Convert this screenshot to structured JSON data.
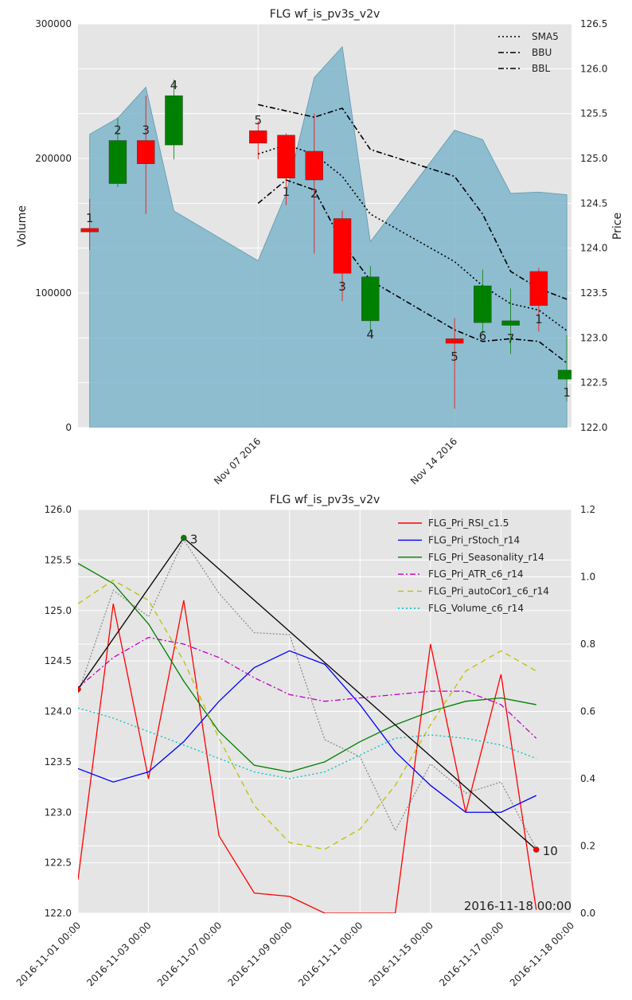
{
  "colors": {
    "plot_bg": "#e5e5e5",
    "grid": "#ffffff",
    "volume_fill": "#7fb6cc",
    "up": "#008000",
    "down": "#ff0000",
    "black": "#000000",
    "gray": "#888888",
    "rsi": "#ff0000",
    "rstoch": "#0000ff",
    "season": "#008000",
    "atr": "#bf00bf",
    "autocor": "#bfbf00",
    "volume_line": "#00bfbf"
  },
  "chart_data": [
    {
      "type": "candlestick",
      "title": "FLG wf_is_pv3s_v2v",
      "ylabel_left": "Volume",
      "ylabel_right": "Price",
      "xlim": [
        "2016-10-31 14:00",
        "2016-11-18 04:00"
      ],
      "ylim_left": [
        0,
        300000
      ],
      "ylim_right": [
        122.0,
        126.5
      ],
      "yticks_left": [
        "0",
        "100000",
        "200000",
        "300000"
      ],
      "yticks_right": [
        "122.0",
        "122.5",
        "123.0",
        "123.5",
        "124.0",
        "124.5",
        "125.0",
        "125.5",
        "126.0",
        "126.5"
      ],
      "xticks": [
        {
          "date": "2016-11-07",
          "label": "Nov 07 2016"
        },
        {
          "date": "2016-11-14",
          "label": "Nov 14 2016"
        }
      ],
      "grid": true,
      "legend_position": "top-right",
      "legend": [
        {
          "label": "SMA5",
          "style": "dotted"
        },
        {
          "label": "BBU",
          "style": "dashdot"
        },
        {
          "label": "BBL",
          "style": "dashdot"
        }
      ],
      "volume": [
        {
          "date": "2016-11-01",
          "value": 218000
        },
        {
          "date": "2016-11-02",
          "value": 230000
        },
        {
          "date": "2016-11-03",
          "value": 253000
        },
        {
          "date": "2016-11-04",
          "value": 161000
        },
        {
          "date": "2016-11-07",
          "value": 124000
        },
        {
          "date": "2016-11-08",
          "value": 174000
        },
        {
          "date": "2016-11-09",
          "value": 260000
        },
        {
          "date": "2016-11-10",
          "value": 283000
        },
        {
          "date": "2016-11-11",
          "value": 138000
        },
        {
          "date": "2016-11-14",
          "value": 221000
        },
        {
          "date": "2016-11-15",
          "value": 214000
        },
        {
          "date": "2016-11-16",
          "value": 174000
        },
        {
          "date": "2016-11-17",
          "value": 175000
        },
        {
          "date": "2016-11-18",
          "value": 173000
        }
      ],
      "candles": [
        {
          "date": "2016-11-01",
          "open": 124.22,
          "close": 124.18,
          "high": 124.55,
          "low": 123.98,
          "label": "1"
        },
        {
          "date": "2016-11-02",
          "open": 124.72,
          "close": 125.2,
          "high": 125.45,
          "low": 124.68,
          "label": "2"
        },
        {
          "date": "2016-11-03",
          "open": 125.2,
          "close": 124.94,
          "high": 125.7,
          "low": 124.38,
          "label": "3"
        },
        {
          "date": "2016-11-04",
          "open": 125.15,
          "close": 125.7,
          "high": 125.88,
          "low": 124.99,
          "label": "4"
        },
        {
          "date": "2016-11-07",
          "open": 125.31,
          "close": 125.17,
          "high": 125.42,
          "low": 124.99,
          "label": "5"
        },
        {
          "date": "2016-11-08",
          "open": 125.26,
          "close": 124.78,
          "high": 125.28,
          "low": 124.48,
          "label": "1"
        },
        {
          "date": "2016-11-09",
          "open": 125.08,
          "close": 124.76,
          "high": 125.5,
          "low": 123.94,
          "label": "2"
        },
        {
          "date": "2016-11-10",
          "open": 124.33,
          "close": 123.72,
          "high": 124.42,
          "low": 123.41,
          "label": "3"
        },
        {
          "date": "2016-11-11",
          "open": 123.19,
          "close": 123.68,
          "high": 123.8,
          "low": 123.07,
          "label": "4"
        },
        {
          "date": "2016-11-14",
          "open": 122.99,
          "close": 122.94,
          "high": 123.22,
          "low": 122.21,
          "label": "5"
        },
        {
          "date": "2016-11-15",
          "open": 123.17,
          "close": 123.58,
          "high": 123.76,
          "low": 123.03,
          "label": "6"
        },
        {
          "date": "2016-11-16",
          "open": 123.14,
          "close": 123.19,
          "high": 123.55,
          "low": 122.82,
          "label": "7"
        },
        {
          "date": "2016-11-17",
          "open": 123.74,
          "close": 123.36,
          "high": 123.78,
          "low": 123.07,
          "label": "1"
        },
        {
          "date": "2016-11-18",
          "open": 122.54,
          "close": 122.64,
          "high": 123.03,
          "low": 122.29,
          "label": "1"
        }
      ],
      "sma5": [
        {
          "date": "2016-11-07",
          "value": 125.05
        },
        {
          "date": "2016-11-08",
          "value": 125.15
        },
        {
          "date": "2016-11-09",
          "value": 125.05
        },
        {
          "date": "2016-11-10",
          "value": 124.8
        },
        {
          "date": "2016-11-11",
          "value": 124.38
        },
        {
          "date": "2016-11-14",
          "value": 123.85
        },
        {
          "date": "2016-11-15",
          "value": 123.58
        },
        {
          "date": "2016-11-16",
          "value": 123.38
        },
        {
          "date": "2016-11-17",
          "value": 123.31
        },
        {
          "date": "2016-11-18",
          "value": 123.08
        }
      ],
      "bbu": [
        {
          "date": "2016-11-07",
          "value": 125.6
        },
        {
          "date": "2016-11-08",
          "value": 125.53
        },
        {
          "date": "2016-11-09",
          "value": 125.46
        },
        {
          "date": "2016-11-10",
          "value": 125.56
        },
        {
          "date": "2016-11-11",
          "value": 125.1
        },
        {
          "date": "2016-11-14",
          "value": 124.8
        },
        {
          "date": "2016-11-15",
          "value": 124.38
        },
        {
          "date": "2016-11-16",
          "value": 123.74
        },
        {
          "date": "2016-11-17",
          "value": 123.55
        },
        {
          "date": "2016-11-18",
          "value": 123.43
        }
      ],
      "bbl": [
        {
          "date": "2016-11-07",
          "value": 124.5
        },
        {
          "date": "2016-11-08",
          "value": 124.76
        },
        {
          "date": "2016-11-09",
          "value": 124.65
        },
        {
          "date": "2016-11-10",
          "value": 124.06
        },
        {
          "date": "2016-11-11",
          "value": 123.64
        },
        {
          "date": "2016-11-14",
          "value": 123.09
        },
        {
          "date": "2016-11-15",
          "value": 122.96
        },
        {
          "date": "2016-11-16",
          "value": 122.99
        },
        {
          "date": "2016-11-17",
          "value": 122.96
        },
        {
          "date": "2016-11-18",
          "value": 122.72
        }
      ]
    },
    {
      "type": "line",
      "title": "FLG wf_is_pv3s_v2v",
      "categories": [
        "2016-11-01 00:00",
        "2016-11-03 00:00",
        "2016-11-07 00:00",
        "2016-11-09 00:00",
        "2016-11-11 00:00",
        "2016-11-15 00:00",
        "2016-11-17 00:00",
        "2016-11-18 00:00"
      ],
      "xlim": [
        0,
        7
      ],
      "ylim_left": [
        122.0,
        126.0
      ],
      "ylim_right": [
        0.0,
        1.2
      ],
      "yticks_left": [
        "122.0",
        "122.5",
        "123.0",
        "123.5",
        "124.0",
        "124.5",
        "125.0",
        "125.5",
        "126.0"
      ],
      "yticks_right": [
        "0.0",
        "0.2",
        "0.4",
        "0.6",
        "0.8",
        "1.0",
        "1.2"
      ],
      "grid": true,
      "legend_position": "top-right",
      "annotation": "2016-11-18 00:00",
      "zigzag": {
        "x": [
          0,
          1.5,
          6.5
        ],
        "y": [
          124.22,
          125.72,
          122.63
        ],
        "labels": [
          "",
          "3",
          "10"
        ],
        "marker_colors": [
          "red",
          "green",
          "red"
        ]
      },
      "price_dotted": {
        "x": [
          0,
          0.5,
          1,
          1.5,
          2,
          2.5,
          3,
          3.5,
          4,
          4.5,
          5,
          5.5,
          6,
          6.5
        ],
        "y": [
          124.18,
          125.2,
          124.94,
          125.7,
          125.17,
          124.78,
          124.76,
          123.72,
          123.55,
          122.82,
          123.48,
          123.19,
          123.3,
          122.64
        ]
      },
      "series": [
        {
          "name": "FLG_Pri_RSI_c1.5",
          "axis": "right",
          "style": "solid",
          "color_key": "rsi",
          "x": [
            0,
            0.5,
            1,
            1.5,
            2,
            2.5,
            3,
            3.5,
            4,
            4.5,
            5,
            5.5,
            6,
            6.5
          ],
          "values": [
            0.1,
            0.92,
            0.4,
            0.93,
            0.23,
            0.06,
            0.05,
            0.0,
            0.0,
            0.0,
            0.8,
            0.3,
            0.71,
            0.01
          ]
        },
        {
          "name": "FLG_Pri_rStoch_r14",
          "axis": "right",
          "style": "solid",
          "color_key": "rstoch",
          "x": [
            0,
            0.5,
            1,
            1.5,
            2,
            2.5,
            3,
            3.5,
            4,
            4.5,
            5,
            5.5,
            6,
            6.5
          ],
          "values": [
            0.43,
            0.39,
            0.42,
            0.51,
            0.63,
            0.73,
            0.78,
            0.74,
            0.62,
            0.48,
            0.38,
            0.3,
            0.3,
            0.35
          ]
        },
        {
          "name": "FLG_Pri_Seasonality_r14",
          "axis": "right",
          "style": "solid",
          "color_key": "season",
          "x": [
            0,
            0.5,
            1,
            1.5,
            2,
            2.5,
            3,
            3.5,
            4,
            4.5,
            5,
            5.5,
            6,
            6.5
          ],
          "values": [
            1.04,
            0.98,
            0.86,
            0.69,
            0.54,
            0.44,
            0.42,
            0.45,
            0.51,
            0.56,
            0.6,
            0.63,
            0.64,
            0.62
          ]
        },
        {
          "name": "FLG_Pri_ATR_c6_r14",
          "axis": "right",
          "style": "dashdot",
          "color_key": "atr",
          "x": [
            0,
            0.5,
            1,
            1.5,
            2,
            2.5,
            3,
            3.5,
            4,
            4.5,
            5,
            5.5,
            6,
            6.5
          ],
          "values": [
            0.67,
            0.76,
            0.82,
            0.8,
            0.76,
            0.7,
            0.65,
            0.63,
            0.64,
            0.65,
            0.66,
            0.66,
            0.62,
            0.52
          ]
        },
        {
          "name": "FLG_Pri_autoCor1_c6_r14",
          "axis": "right",
          "style": "dashed",
          "color_key": "autocor",
          "x": [
            0,
            0.5,
            1,
            1.5,
            2,
            2.5,
            3,
            3.5,
            4,
            4.5,
            5,
            5.5,
            6,
            6.5
          ],
          "values": [
            0.92,
            0.99,
            0.93,
            0.75,
            0.52,
            0.32,
            0.21,
            0.19,
            0.25,
            0.38,
            0.56,
            0.72,
            0.78,
            0.72
          ]
        },
        {
          "name": "FLG_Volume_c6_r14",
          "axis": "right",
          "style": "dotted",
          "color_key": "volume_line",
          "x": [
            0,
            0.5,
            1,
            1.5,
            2,
            2.5,
            3,
            3.5,
            4,
            4.5,
            5,
            5.5,
            6,
            6.5
          ],
          "values": [
            0.61,
            0.58,
            0.54,
            0.5,
            0.46,
            0.42,
            0.4,
            0.42,
            0.47,
            0.52,
            0.53,
            0.52,
            0.5,
            0.46
          ]
        }
      ]
    }
  ]
}
